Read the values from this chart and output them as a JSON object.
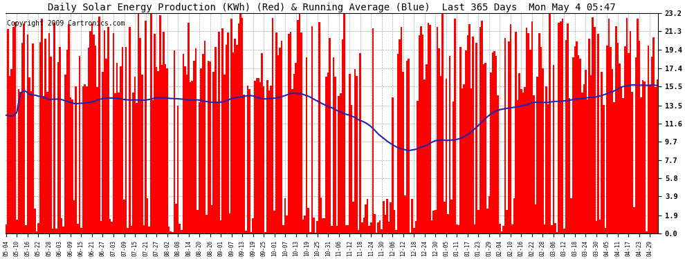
{
  "title": "Daily Solar Energy Production (KWh) (Red) & Running Average (Blue)  Last 365 Days  Mon May 4 05:47",
  "copyright": "Copyright 2009 Cartronics.com",
  "yticks": [
    0.0,
    1.9,
    3.9,
    5.8,
    7.7,
    9.7,
    11.6,
    13.5,
    15.5,
    17.4,
    19.4,
    21.3,
    23.2
  ],
  "ymax": 23.2,
  "ymin": 0.0,
  "bar_color": "#ff0000",
  "avg_color": "#2222aa",
  "background_color": "#ffffff",
  "grid_color": "#aaaaaa",
  "title_fontsize": 10,
  "copyright_fontsize": 7,
  "n_days": 365,
  "x_tick_labels": [
    "05-04",
    "05-10",
    "05-16",
    "05-22",
    "05-28",
    "06-03",
    "06-09",
    "06-15",
    "06-21",
    "06-27",
    "07-03",
    "07-09",
    "07-15",
    "07-21",
    "07-27",
    "08-02",
    "08-08",
    "08-14",
    "08-20",
    "08-26",
    "09-01",
    "09-07",
    "09-13",
    "09-19",
    "09-25",
    "10-01",
    "10-07",
    "10-13",
    "10-19",
    "10-25",
    "10-31",
    "11-06",
    "11-12",
    "11-18",
    "11-24",
    "11-30",
    "12-06",
    "12-12",
    "12-18",
    "12-24",
    "12-30",
    "01-05",
    "01-11",
    "01-17",
    "01-23",
    "01-29",
    "02-04",
    "02-10",
    "02-16",
    "02-22",
    "02-28",
    "03-06",
    "03-12",
    "03-18",
    "03-24",
    "03-30",
    "04-05",
    "04-11",
    "04-17",
    "04-23",
    "04-29"
  ]
}
